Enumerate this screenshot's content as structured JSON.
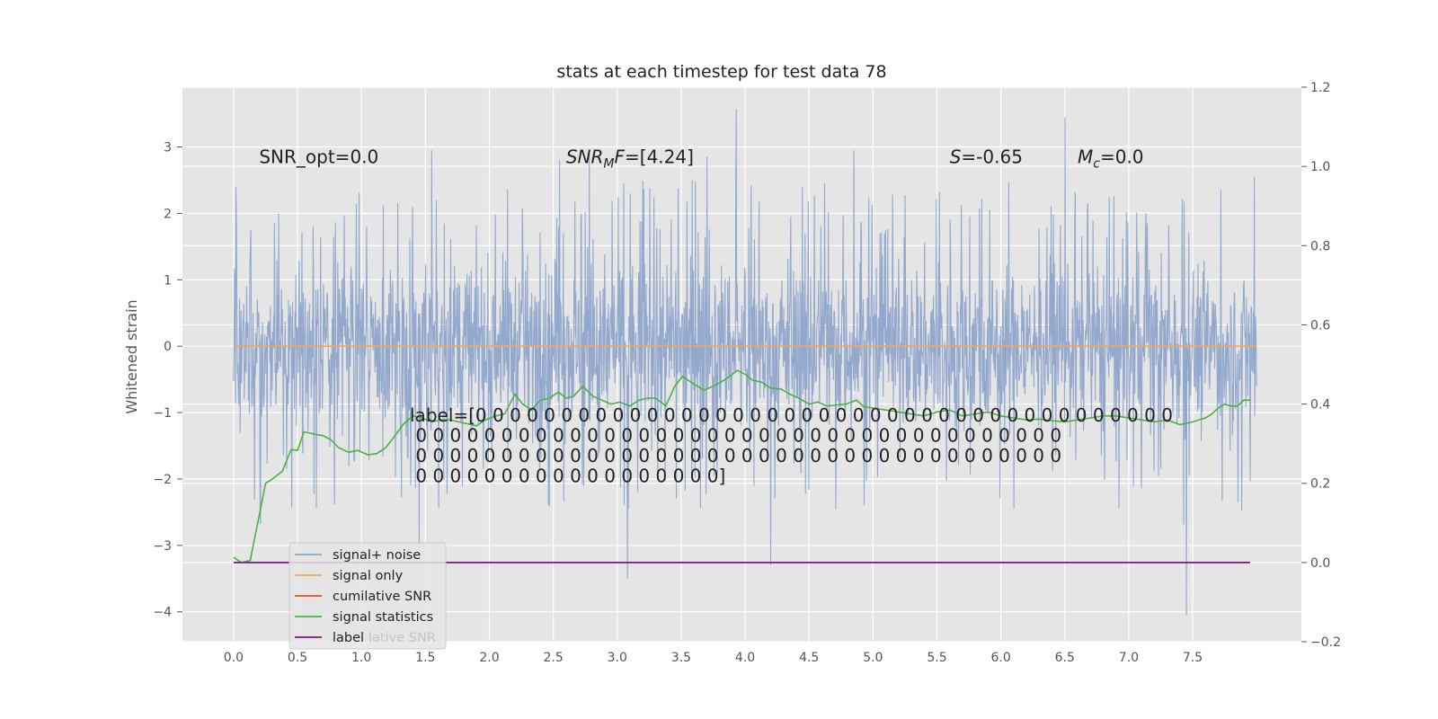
{
  "chart_data": {
    "type": "line",
    "title": "stats at each timestep for test data 78",
    "ylabel": "Whitened strain",
    "xlabel": "",
    "xlim": [
      -0.4,
      8.35
    ],
    "ylim": [
      -4.45,
      3.9
    ],
    "y2lim": [
      -0.2,
      1.2
    ],
    "grid": true,
    "xticks": [
      0.0,
      0.5,
      1.0,
      1.5,
      2.0,
      2.5,
      3.0,
      3.5,
      4.0,
      4.5,
      5.0,
      5.5,
      6.0,
      6.5,
      7.0,
      7.5
    ],
    "xtick_labels": [
      "0.0",
      "0.5",
      "1.0",
      "1.5",
      "2.0",
      "2.5",
      "3.0",
      "3.5",
      "4.0",
      "4.5",
      "5.0",
      "5.5",
      "6.0",
      "6.5",
      "7.0",
      "7.5"
    ],
    "yticks": [
      -4,
      -3,
      -2,
      -1,
      0,
      1,
      2,
      3
    ],
    "ytick_labels": [
      "−4",
      "−3",
      "−2",
      "−1",
      "0",
      "1",
      "2",
      "3"
    ],
    "y2ticks": [
      -0.2,
      0.0,
      0.2,
      0.4,
      0.6,
      0.8,
      1.0,
      1.2
    ],
    "y2tick_labels": [
      "−0.2",
      "0.0",
      "0.2",
      "0.4",
      "0.6",
      "0.8",
      "1.0",
      "1.2"
    ],
    "legend_placement": "lower-left",
    "series": [
      {
        "name": "signal+ noise",
        "axis": "left",
        "color": "#92a8cd",
        "x_range": [
          0.0,
          8.0
        ],
        "envelope_typical": [
          -1.5,
          1.5
        ],
        "notable_extremes": [
          {
            "x": 0.02,
            "y": 1.95
          },
          {
            "x": 0.21,
            "y": -2.68
          },
          {
            "x": 1.55,
            "y": 2.95
          },
          {
            "x": 1.45,
            "y": -3.05
          },
          {
            "x": 2.55,
            "y": 2.8
          },
          {
            "x": 2.78,
            "y": 2.93
          },
          {
            "x": 3.08,
            "y": -3.5
          },
          {
            "x": 3.7,
            "y": 2.85
          },
          {
            "x": 3.93,
            "y": 3.57
          },
          {
            "x": 4.2,
            "y": -3.3
          },
          {
            "x": 4.85,
            "y": 2.95
          },
          {
            "x": 6.5,
            "y": 3.45
          },
          {
            "x": 7.45,
            "y": -4.05
          },
          {
            "x": 7.43,
            "y": -2.68
          },
          {
            "x": 7.98,
            "y": 2.55
          }
        ]
      },
      {
        "name": "signal only",
        "axis": "left",
        "color": "#f0a858",
        "x": [
          0.0,
          8.0
        ],
        "y": [
          0.0,
          0.0
        ]
      },
      {
        "name": "cumilative SNR",
        "axis": "left",
        "color": "#e24a33",
        "x": [],
        "y": []
      },
      {
        "name": "signal statistics",
        "axis": "right",
        "color": "#4daf4a",
        "x": [
          0.0,
          0.06,
          0.13,
          0.25,
          0.3,
          0.38,
          0.45,
          0.5,
          0.55,
          0.62,
          0.7,
          0.76,
          0.82,
          0.9,
          0.97,
          1.05,
          1.12,
          1.19,
          1.25,
          1.33,
          1.4,
          1.47,
          1.55,
          1.62,
          1.69,
          1.76,
          1.83,
          1.9,
          1.97,
          2.05,
          2.12,
          2.2,
          2.26,
          2.33,
          2.4,
          2.47,
          2.54,
          2.6,
          2.66,
          2.73,
          2.81,
          2.88,
          2.95,
          3.02,
          3.1,
          3.17,
          3.24,
          3.3,
          3.38,
          3.45,
          3.51,
          3.6,
          3.68,
          3.75,
          3.81,
          3.88,
          3.94,
          4.0,
          4.06,
          4.13,
          4.2,
          4.28,
          4.35,
          4.42,
          4.5,
          4.57,
          4.64,
          4.72,
          4.79,
          4.87,
          4.93,
          5.0,
          5.1,
          5.2,
          5.3,
          5.4,
          5.5,
          5.6,
          5.7,
          5.8,
          5.9,
          6.0,
          6.1,
          6.2,
          6.3,
          6.4,
          6.5,
          6.6,
          6.7,
          6.8,
          6.9,
          7.0,
          7.1,
          7.2,
          7.3,
          7.4,
          7.5,
          7.6,
          7.65,
          7.7,
          7.75,
          7.8,
          7.85,
          7.9,
          7.95
        ],
        "y": [
          0.013,
          0.0,
          0.005,
          0.2,
          0.21,
          0.23,
          0.285,
          0.283,
          0.33,
          0.325,
          0.32,
          0.31,
          0.29,
          0.278,
          0.283,
          0.272,
          0.275,
          0.29,
          0.315,
          0.35,
          0.37,
          0.365,
          0.355,
          0.36,
          0.36,
          0.355,
          0.35,
          0.345,
          0.36,
          0.37,
          0.375,
          0.425,
          0.4,
          0.385,
          0.41,
          0.415,
          0.43,
          0.415,
          0.42,
          0.445,
          0.42,
          0.41,
          0.4,
          0.405,
          0.395,
          0.41,
          0.415,
          0.415,
          0.395,
          0.445,
          0.47,
          0.45,
          0.435,
          0.445,
          0.455,
          0.47,
          0.485,
          0.475,
          0.46,
          0.455,
          0.44,
          0.438,
          0.425,
          0.415,
          0.4,
          0.405,
          0.395,
          0.398,
          0.4,
          0.41,
          0.393,
          0.39,
          0.385,
          0.38,
          0.375,
          0.37,
          0.38,
          0.385,
          0.37,
          0.375,
          0.38,
          0.37,
          0.365,
          0.36,
          0.362,
          0.358,
          0.355,
          0.36,
          0.365,
          0.37,
          0.37,
          0.365,
          0.36,
          0.355,
          0.36,
          0.348,
          0.355,
          0.365,
          0.375,
          0.39,
          0.4,
          0.395,
          0.395,
          0.41,
          0.41
        ]
      },
      {
        "name": "label",
        "axis": "right",
        "color": "#7a1a7a",
        "x": [
          0.0,
          7.95
        ],
        "y": [
          0.0,
          0.0
        ]
      }
    ],
    "annotations": [
      {
        "text": "SNR_opt=0.0",
        "x": 0.2,
        "y": 2.85
      },
      {
        "text": "SNR_MF=[4.24]",
        "parts": [
          "SNR",
          "M",
          "F=[4.24]"
        ],
        "x": 2.6,
        "y": 2.85
      },
      {
        "text": "S=-0.65",
        "parts": [
          "S",
          "=-0.65"
        ],
        "x": 5.6,
        "y": 2.85
      },
      {
        "text": "M_c=0.0",
        "parts": [
          "M",
          "c",
          "=0.0"
        ],
        "x": 6.6,
        "y": 2.85
      }
    ],
    "label_text_lines": [
      "label=[0 0 0 0 0 0 0 0 0 0 0 0 0 0 0 0 0 0 0 0 0 0 0 0 0 0 0 0 0 0 0 0 0 0 0 0 0 0 0 0 0",
      " 0 0 0 0 0 0 0 0 0 0 0 0 0 0 0 0 0 0 0 0 0 0 0 0 0 0 0 0 0 0 0 0 0 0 0 0 0 0",
      " 0 0 0 0 0 0 0 0 0 0 0 0 0 0 0 0 0 0 0 0 0 0 0 0 0 0 0 0 0 0 0 0 0 0 0 0 0 0",
      " 0 0 0 0 0 0 0 0 0 0 0 0 0 0 0 0 0 0]"
    ],
    "legend_overlap_text": "lative SNR"
  }
}
